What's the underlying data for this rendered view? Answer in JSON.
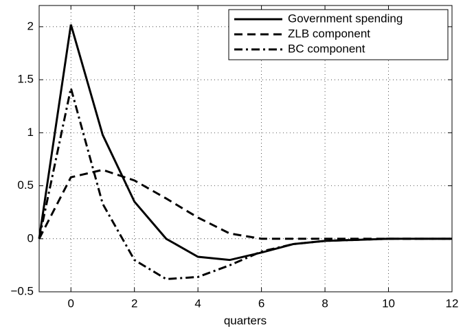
{
  "chart_data": {
    "type": "line",
    "x": [
      -1,
      0,
      1,
      2,
      3,
      4,
      5,
      6,
      7,
      8,
      9,
      10,
      11,
      12
    ],
    "xlabel": "quarters",
    "series": [
      {
        "name": "Government spending",
        "color": "#000000",
        "style": "solid",
        "values": [
          0,
          2.02,
          0.98,
          0.35,
          0.0,
          -0.17,
          -0.2,
          -0.13,
          -0.05,
          -0.02,
          -0.01,
          0,
          0,
          0
        ]
      },
      {
        "name": "ZLB component",
        "color": "#000000",
        "style": "dashed",
        "values": [
          0,
          0.58,
          0.65,
          0.55,
          0.38,
          0.2,
          0.05,
          0.0,
          0,
          0,
          0,
          0,
          0,
          0
        ]
      },
      {
        "name": "BC component",
        "color": "#000000",
        "style": "dashdot",
        "values": [
          0,
          1.42,
          0.33,
          -0.2,
          -0.38,
          -0.36,
          -0.25,
          -0.12,
          -0.05,
          -0.02,
          -0.01,
          0,
          0,
          0
        ]
      }
    ],
    "xlim": [
      -1,
      12
    ],
    "xticks": [
      0,
      2,
      4,
      6,
      8,
      10,
      12
    ],
    "ylim": [
      -0.5,
      2.2
    ],
    "yticks": [
      {
        "value": -0.5,
        "label": "−0.5"
      },
      0,
      0.5,
      1,
      1.5,
      2
    ],
    "grid": true,
    "legend": "upper-right"
  }
}
